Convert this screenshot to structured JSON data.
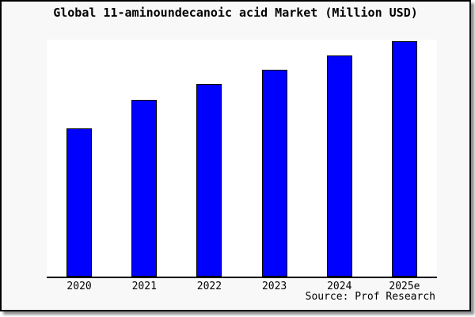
{
  "window": {
    "background": "#f8f8f8",
    "frame_color": "#000000",
    "page_background": "#ffffff"
  },
  "title": "Global 11-aminoundecanoic acid Market (Million USD)",
  "source_note": "Source: Prof Research",
  "chart_data": {
    "type": "bar",
    "title": "Global 11-aminoundecanoic acid Market (Million USD)",
    "categories": [
      "2020",
      "2021",
      "2022",
      "2023",
      "2024",
      "2025e"
    ],
    "values": [
      63,
      75,
      82,
      88,
      94,
      100
    ],
    "value_note": "No y-axis, gridlines or data labels are shown; values are estimated bar heights as a percent of the 2025e bar (tallest = 100)",
    "xlabel": "",
    "ylabel": "",
    "ylim_relative": [
      0,
      100.5
    ],
    "grid": false,
    "legend": false,
    "bar_color": "#0000ff",
    "bar_border_color": "#000000",
    "plot_background": "#ffffff",
    "source": "Source: Prof Research"
  }
}
